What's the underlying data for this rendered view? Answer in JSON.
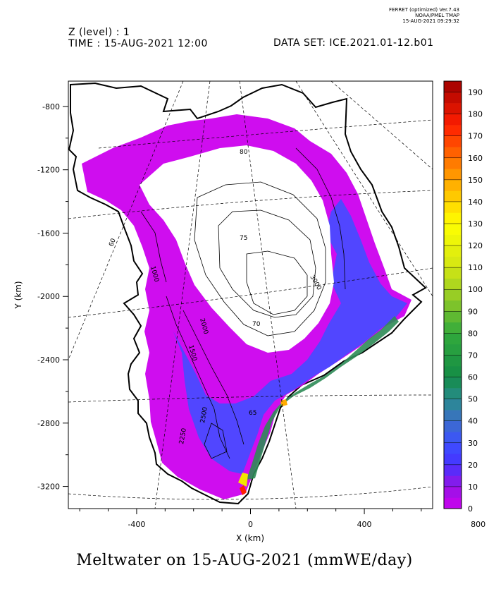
{
  "header": {
    "z_level": "Z (level) : 1",
    "time": "TIME : 15-AUG-2021 12:00",
    "dataset": "DATA SET: ICE.2021.01-12.b01",
    "ferret_lines": [
      "FERRET (optimized) Ver.7.43",
      "NOAA/PMEL TMAP",
      "15-AUG-2021 09:29:32"
    ]
  },
  "chart_data": {
    "type": "heatmap",
    "title": "Meltwater on 15-AUG-2021 (mmWE/day)",
    "xlabel": "X (km)",
    "ylabel": "Y (km)",
    "xlim": [
      -640,
      640
    ],
    "ylim": [
      -3340,
      -640
    ],
    "xticks": [
      -400,
      0,
      400,
      800
    ],
    "yticks": [
      -800,
      -1200,
      -1600,
      -2000,
      -2400,
      -2800,
      -3200
    ],
    "colorbar": {
      "min": 0,
      "max": 195,
      "step": 5,
      "tick_labels": [
        0,
        10,
        20,
        30,
        40,
        50,
        60,
        70,
        80,
        90,
        100,
        110,
        120,
        130,
        140,
        150,
        160,
        170,
        180,
        190
      ]
    },
    "contour_labels": [
      "1000",
      "1500",
      "2000",
      "2500",
      "2250",
      "3000",
      "75",
      "80",
      "70",
      "65",
      "60"
    ],
    "colors": {
      "purple": "#cc00ee",
      "violet": "#8a2be2",
      "blue": "#4040ff",
      "green": "#2e8b57",
      "yellow": "#ffff00",
      "red": "#ff2000"
    }
  }
}
